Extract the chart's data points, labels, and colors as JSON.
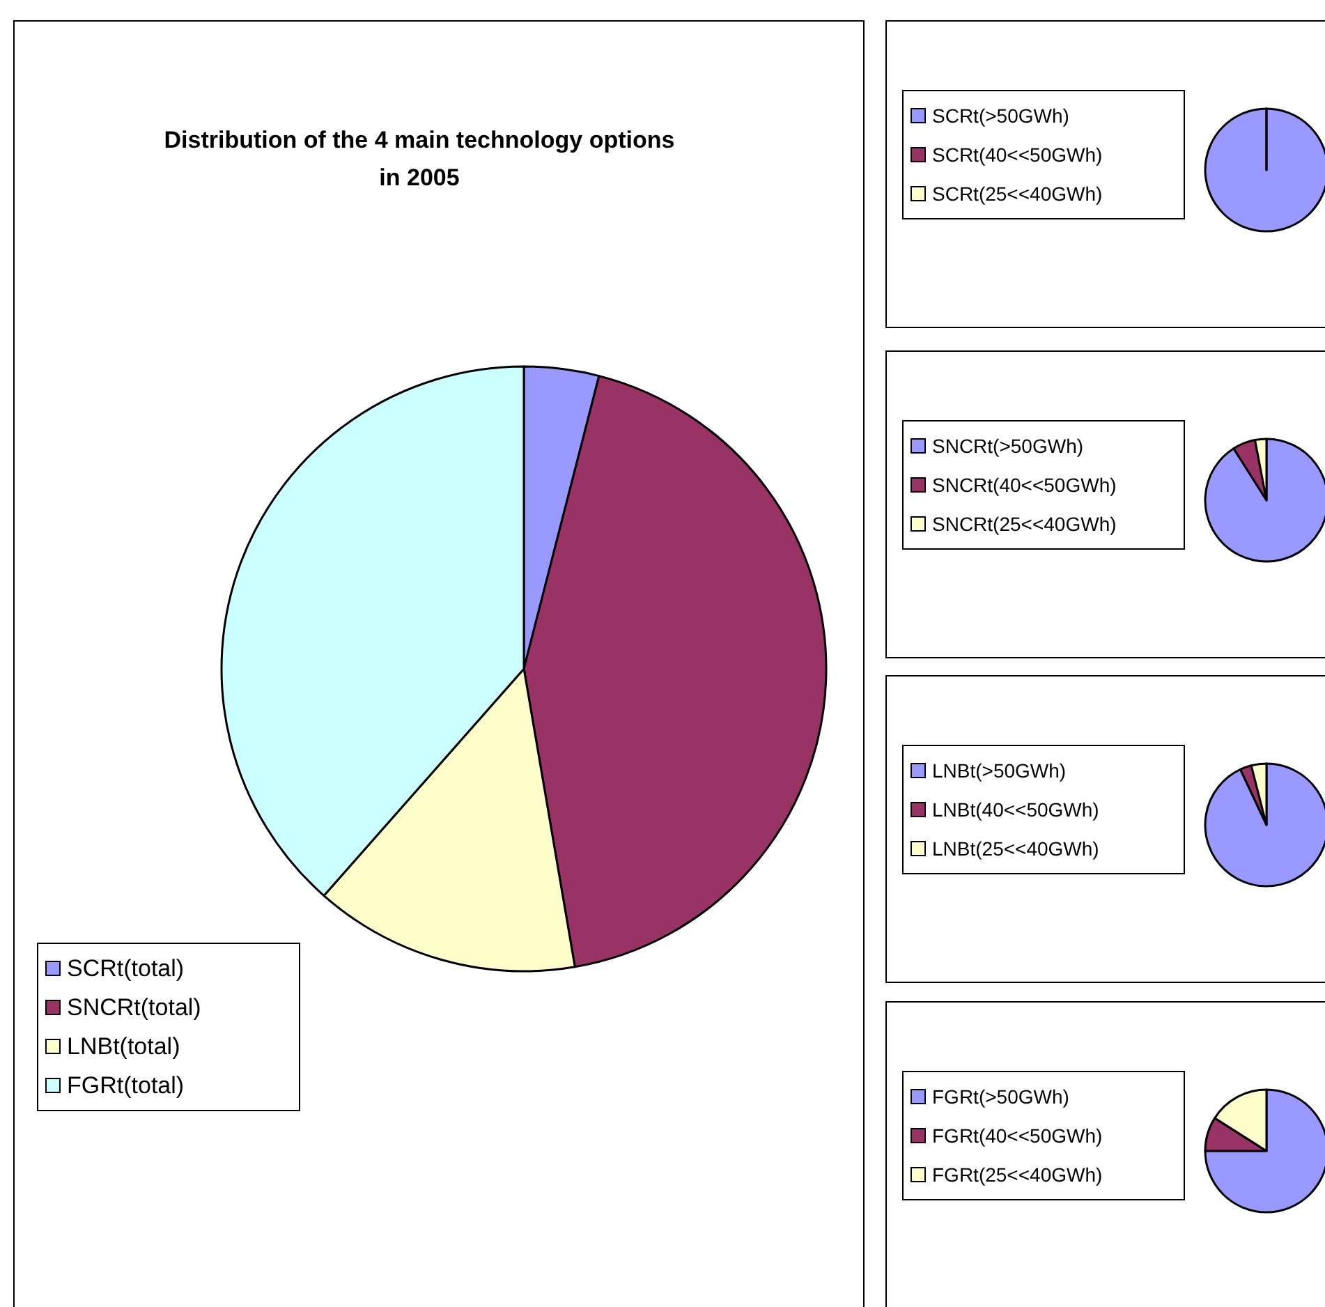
{
  "chart_data": [
    {
      "type": "pie",
      "title": "Distribution of the 4 main technology options in 2005",
      "categories": [
        "SCRt(total)",
        "SNCRt(total)",
        "LNBt(total)",
        "FGRt(total)"
      ],
      "values": [
        4,
        43.3,
        14.2,
        38.5
      ],
      "colors": [
        "#9999ff",
        "#993366",
        "#ffffcc",
        "#ccffff"
      ],
      "legend": "bottom left"
    },
    {
      "type": "pie",
      "categories": [
        "SCRt(>50GWh)",
        "SCRt(40<<50GWh)",
        "SCRt(25<<40GWh)"
      ],
      "values": [
        100,
        0,
        0
      ],
      "colors": [
        "#9999ff",
        "#993366",
        "#ffffcc"
      ],
      "legend": "left"
    },
    {
      "type": "pie",
      "categories": [
        "SNCRt(>50GWh)",
        "SNCRt(40<<50GWh)",
        "SNCRt(25<<40GWh)"
      ],
      "values": [
        91,
        6,
        3
      ],
      "colors": [
        "#9999ff",
        "#993366",
        "#ffffcc"
      ],
      "legend": "left"
    },
    {
      "type": "pie",
      "categories": [
        "LNBt(>50GWh)",
        "LNBt(40<<50GWh)",
        "LNBt(25<<40GWh)"
      ],
      "values": [
        93,
        3,
        4
      ],
      "colors": [
        "#9999ff",
        "#993366",
        "#ffffcc"
      ],
      "legend": "left"
    },
    {
      "type": "pie",
      "categories": [
        "FGRt(>50GWh)",
        "FGRt(40<<50GWh)",
        "FGRt(25<<40GWh)"
      ],
      "values": [
        75,
        9,
        16
      ],
      "colors": [
        "#9999ff",
        "#993366",
        "#ffffcc"
      ],
      "legend": "left"
    }
  ]
}
